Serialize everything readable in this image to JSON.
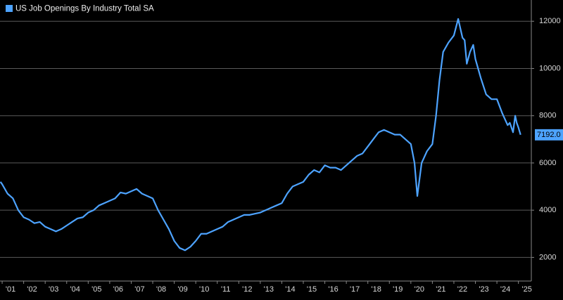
{
  "chart_data": {
    "type": "line",
    "x": [
      2000.92,
      2001.0,
      2001.25,
      2001.5,
      2001.75,
      2002.0,
      2002.25,
      2002.5,
      2002.75,
      2003.0,
      2003.25,
      2003.5,
      2003.75,
      2004.0,
      2004.25,
      2004.5,
      2004.75,
      2005.0,
      2005.25,
      2005.5,
      2005.75,
      2006.0,
      2006.25,
      2006.5,
      2006.75,
      2007.0,
      2007.25,
      2007.5,
      2007.75,
      2008.0,
      2008.25,
      2008.5,
      2008.75,
      2009.0,
      2009.25,
      2009.5,
      2009.75,
      2010.0,
      2010.25,
      2010.5,
      2010.75,
      2011.0,
      2011.25,
      2011.5,
      2011.75,
      2012.0,
      2012.25,
      2012.5,
      2012.75,
      2013.0,
      2013.25,
      2013.5,
      2013.75,
      2014.0,
      2014.25,
      2014.5,
      2014.75,
      2015.0,
      2015.25,
      2015.5,
      2015.75,
      2016.0,
      2016.25,
      2016.5,
      2016.75,
      2017.0,
      2017.25,
      2017.5,
      2017.75,
      2018.0,
      2018.25,
      2018.5,
      2018.75,
      2019.0,
      2019.25,
      2019.5,
      2019.75,
      2020.0,
      2020.17,
      2020.3,
      2020.5,
      2020.75,
      2021.0,
      2021.17,
      2021.33,
      2021.5,
      2021.75,
      2022.0,
      2022.2,
      2022.4,
      2022.5,
      2022.6,
      2022.75,
      2022.9,
      2023.0,
      2023.25,
      2023.5,
      2023.75,
      2024.0,
      2024.25,
      2024.5,
      2024.6,
      2024.75,
      2024.85,
      2024.92,
      2025.0,
      2025.1
    ],
    "series": [
      {
        "name": "US Job Openings By Industry Total SA",
        "color": "#4da3ff",
        "values": [
          5200,
          5100,
          4700,
          4500,
          4000,
          3700,
          3600,
          3450,
          3500,
          3300,
          3200,
          3100,
          3200,
          3350,
          3500,
          3650,
          3700,
          3900,
          4000,
          4200,
          4300,
          4400,
          4500,
          4750,
          4700,
          4800,
          4900,
          4700,
          4600,
          4500,
          4000,
          3600,
          3200,
          2700,
          2400,
          2300,
          2450,
          2700,
          3000,
          3000,
          3100,
          3200,
          3300,
          3500,
          3600,
          3700,
          3800,
          3800,
          3850,
          3900,
          4000,
          4100,
          4200,
          4300,
          4700,
          5000,
          5100,
          5200,
          5500,
          5700,
          5600,
          5900,
          5800,
          5800,
          5700,
          5900,
          6100,
          6300,
          6400,
          6700,
          7000,
          7300,
          7400,
          7300,
          7200,
          7200,
          7000,
          6800,
          6000,
          4600,
          6000,
          6500,
          6800,
          8000,
          9500,
          10700,
          11100,
          11400,
          12100,
          11300,
          11200,
          10200,
          10700,
          11000,
          10400,
          9600,
          8900,
          8700,
          8700,
          8100,
          7600,
          7700,
          7300,
          8000,
          7700,
          7500,
          7192
        ],
        "value_labels": [
          null,
          null,
          null,
          null,
          null,
          null,
          null,
          null,
          null,
          null,
          null,
          null,
          null,
          null,
          null,
          null,
          null,
          null,
          null,
          null,
          null,
          null,
          null,
          null,
          null,
          null,
          null,
          null,
          null,
          null,
          null,
          null,
          null,
          null,
          null,
          null,
          null,
          null,
          null,
          null,
          null,
          null,
          null,
          null,
          null,
          null,
          null,
          null,
          null,
          null,
          null,
          null,
          null,
          null,
          null,
          null,
          null,
          null,
          null,
          null,
          null,
          null,
          null,
          null,
          null,
          null,
          null,
          null,
          null,
          null,
          null,
          null,
          null,
          null,
          null,
          null,
          null,
          null,
          null,
          null,
          null,
          null,
          null,
          null,
          null,
          null,
          null,
          null,
          null,
          null,
          null,
          null,
          null,
          null,
          null,
          null,
          null,
          null,
          null,
          null,
          null,
          null,
          null,
          null,
          null,
          null,
          "7192.0"
        ]
      }
    ],
    "xlim": [
      2000.9,
      2025.6
    ],
    "xticks": [
      {
        "value": 2001,
        "label": "'01"
      },
      {
        "value": 2002,
        "label": "'02"
      },
      {
        "value": 2003,
        "label": "'03"
      },
      {
        "value": 2004,
        "label": "'04"
      },
      {
        "value": 2005,
        "label": "'05"
      },
      {
        "value": 2006,
        "label": "'06"
      },
      {
        "value": 2007,
        "label": "'07"
      },
      {
        "value": 2008,
        "label": "'08"
      },
      {
        "value": 2009,
        "label": "'09"
      },
      {
        "value": 2010,
        "label": "'10"
      },
      {
        "value": 2011,
        "label": "'11"
      },
      {
        "value": 2012,
        "label": "'12"
      },
      {
        "value": 2013,
        "label": "'13"
      },
      {
        "value": 2014,
        "label": "'14"
      },
      {
        "value": 2015,
        "label": "'15"
      },
      {
        "value": 2016,
        "label": "'16"
      },
      {
        "value": 2017,
        "label": "'17"
      },
      {
        "value": 2018,
        "label": "'18"
      },
      {
        "value": 2019,
        "label": "'19"
      },
      {
        "value": 2020,
        "label": "'20"
      },
      {
        "value": 2021,
        "label": "'21"
      },
      {
        "value": 2022,
        "label": "'22"
      },
      {
        "value": 2023,
        "label": "'23"
      },
      {
        "value": 2024,
        "label": "'24"
      },
      {
        "value": 2025,
        "label": "'25"
      }
    ],
    "ylim": [
      1000,
      12900
    ],
    "yticks": [
      2000,
      4000,
      6000,
      8000,
      10000,
      12000
    ],
    "grid": true
  }
}
